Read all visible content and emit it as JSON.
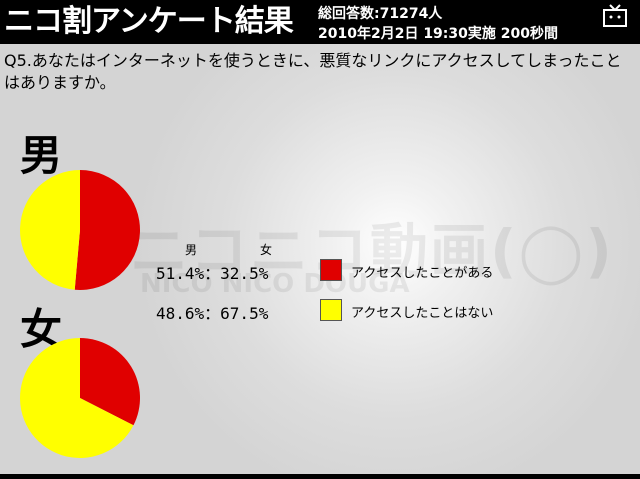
{
  "header": {
    "title": "ニコ割アンケート結果",
    "meta_line1": "総回答数:71274人",
    "meta_line2": "2010年2月2日 19:30実施 200秒間",
    "icon": "tv-icon"
  },
  "question": "Q5.あなたはインターネットを使うときに、悪質なリンクにアクセスしてしまったことはありますか。",
  "watermark": {
    "jp": "ニコニコ動画(◯)",
    "en": "NICO NICO DOUGA"
  },
  "results": {
    "male_label": "男",
    "female_label": "女",
    "col_male": "男",
    "col_female": "女",
    "rows": [
      {
        "text": "51.4%：32.5%",
        "legend": "アクセスしたことがある",
        "color": "#e00000",
        "male": 51.4,
        "female": 32.5
      },
      {
        "text": "48.6%：67.5%",
        "legend": "アクセスしたことはない",
        "color": "#ffff00",
        "male": 48.6,
        "female": 67.5
      }
    ]
  }
}
